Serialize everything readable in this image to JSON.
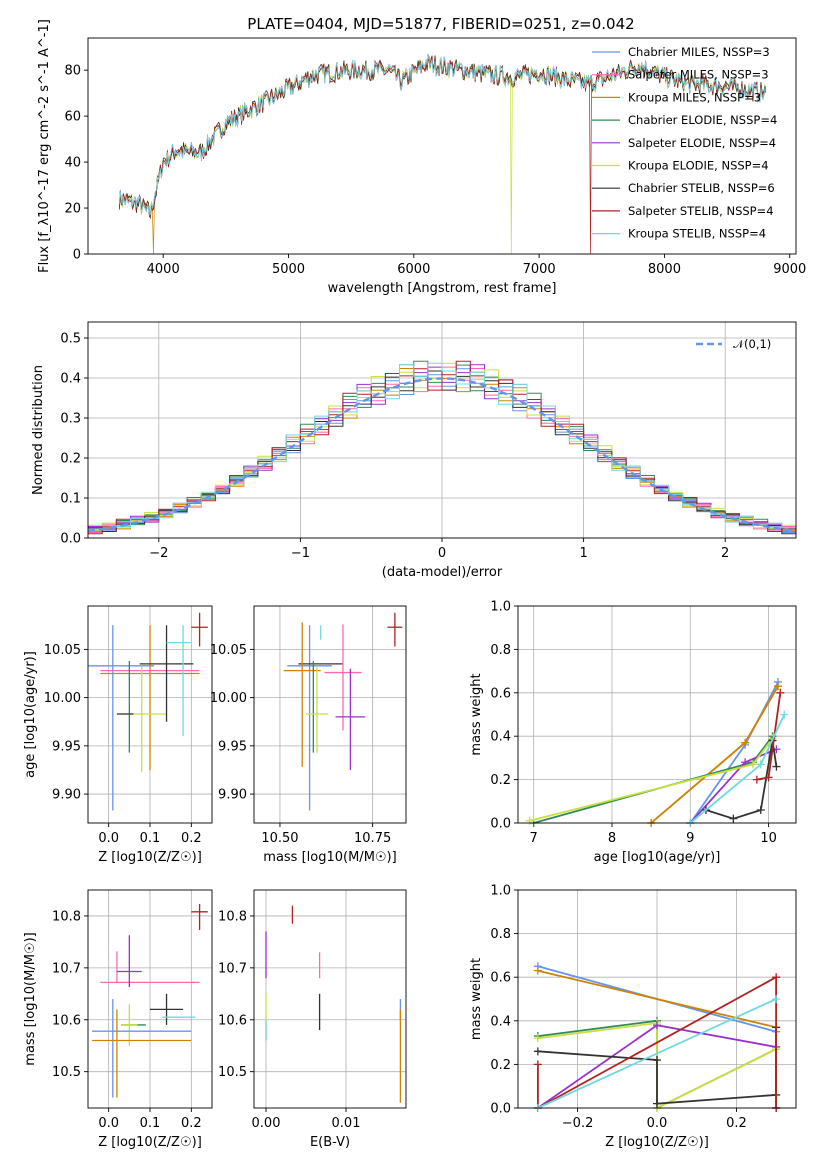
{
  "figure": {
    "title": "PLATE=0404, MJD=51877, FIBERID=0251, z=0.042"
  },
  "chart_data": [
    {
      "id": "spectrum",
      "type": "line",
      "xlabel": "wavelength [Angstrom, rest frame]",
      "ylabel": "Flux [f_λ10^-17 erg cm^-2 s^-1 A^-1]",
      "xlim": [
        3400,
        9050
      ],
      "ylim": [
        0,
        94
      ],
      "xticks": [
        4000,
        5000,
        6000,
        7000,
        8000,
        9000
      ],
      "yticks": [
        0,
        20,
        40,
        60,
        80
      ],
      "grid": false,
      "legend_position": "top-right",
      "spectrum_anchor": {
        "x": [
          3650,
          3800,
          3900,
          4000,
          4100,
          4300,
          4500,
          4700,
          5000,
          5200,
          5500,
          5800,
          5900,
          6100,
          6300,
          6600,
          6800,
          7000,
          7200,
          7400,
          7600,
          7800,
          8000,
          8200,
          8500,
          8800
        ],
        "y": [
          24,
          22,
          18,
          40,
          45,
          44,
          57,
          63,
          72,
          78,
          80,
          80,
          75,
          83,
          81,
          78,
          77,
          79,
          76,
          74,
          78,
          82,
          77,
          74,
          73,
          70
        ]
      },
      "series": [
        {
          "name": "Chabrier MILES, N_SSP=3",
          "color": "#6495ed",
          "dropout": null
        },
        {
          "name": "Salpeter MILES, N_SSP=3",
          "color": "#ff69b4",
          "dropout": null
        },
        {
          "name": "Kroupa MILES, N_SSP=3",
          "color": "#cd8500",
          "dropout": 3920
        },
        {
          "name": "Chabrier ELODIE, N_SSP=4",
          "color": "#2e8b57",
          "dropout": null
        },
        {
          "name": "Salpeter ELODIE, N_SSP=4",
          "color": "#9932cc",
          "dropout": null
        },
        {
          "name": "Kroupa ELODIE, N_SSP=4",
          "color": "#c8e040",
          "dropout": 6780
        },
        {
          "name": "Chabrier STELIB, N_SSP=6",
          "color": "#333333",
          "dropout": null
        },
        {
          "name": "Salpeter STELIB, N_SSP=4",
          "color": "#b22222",
          "dropout": 7410
        },
        {
          "name": "Kroupa STELIB, N_SSP=4",
          "color": "#70d8e0",
          "dropout": null
        }
      ]
    },
    {
      "id": "residuals",
      "type": "line",
      "xlabel": "(data-model)/error",
      "ylabel": "Normed distribution",
      "xlim": [
        -2.5,
        2.5
      ],
      "ylim": [
        0,
        0.54
      ],
      "xticks": [
        -2,
        -1,
        0,
        1,
        2
      ],
      "yticks": [
        0.0,
        0.1,
        0.2,
        0.3,
        0.4,
        0.5
      ],
      "grid": true,
      "legend_position": "top-right",
      "gaussian": {
        "name": "𝒩(0,1)",
        "color": "#6495ed",
        "mu": 0,
        "sigma": 1
      },
      "bin_width": 0.1,
      "histograms": [
        {
          "color": "#6495ed",
          "offsets": [
            0.01,
            -0.02,
            0.03,
            0.0,
            -0.01,
            0.02,
            -0.03,
            0.01
          ]
        },
        {
          "color": "#ff69b4",
          "offsets": [
            -0.02,
            0.03,
            0.0,
            0.04,
            -0.02,
            0.01,
            0.05,
            -0.03
          ]
        },
        {
          "color": "#cd8500",
          "offsets": [
            0.02,
            0.0,
            -0.03,
            0.03,
            0.01,
            -0.02,
            0.04,
            0.0
          ]
        },
        {
          "color": "#2e8b57",
          "offsets": [
            -0.01,
            0.02,
            0.04,
            -0.02,
            0.03,
            0.0,
            -0.01,
            0.05
          ]
        },
        {
          "color": "#9932cc",
          "offsets": [
            0.03,
            -0.01,
            0.02,
            0.05,
            -0.03,
            0.04,
            0.0,
            0.02
          ]
        },
        {
          "color": "#c8e040",
          "offsets": [
            0.0,
            0.04,
            -0.02,
            0.01,
            0.05,
            -0.01,
            0.03,
            -0.02
          ]
        },
        {
          "color": "#333333",
          "offsets": [
            0.02,
            -0.03,
            0.01,
            -0.01,
            0.02,
            0.03,
            -0.02,
            0.01
          ]
        },
        {
          "color": "#b22222",
          "offsets": [
            -0.03,
            0.01,
            0.05,
            0.02,
            -0.01,
            0.04,
            0.02,
            0.03
          ]
        },
        {
          "color": "#70d8e0",
          "offsets": [
            0.04,
            0.02,
            -0.01,
            0.03,
            0.0,
            -0.03,
            0.05,
            0.01
          ]
        }
      ]
    },
    {
      "id": "age-vs-z",
      "type": "scatter",
      "xlabel": "Z [log10(Z/Z☉)]",
      "ylabel": "age  [log10(age/yr)]",
      "xlim": [
        -0.05,
        0.25
      ],
      "ylim": [
        9.87,
        10.095
      ],
      "xticks": [
        0.0,
        0.1,
        0.2
      ],
      "yticks": [
        9.9,
        9.95,
        10.0,
        10.05
      ],
      "grid": true,
      "points": [
        {
          "color": "#6495ed",
          "x": 0.01,
          "xerr": 0.1,
          "y": 10.033,
          "yerr": [
            0.15,
            0.042
          ]
        },
        {
          "color": "#ff69b4",
          "x": 0.1,
          "xerr": 0.12,
          "y": 10.028,
          "yerr": [
            0.0,
            0.0
          ]
        },
        {
          "color": "#cd8500",
          "x": 0.1,
          "xerr": 0.12,
          "y": 10.025,
          "yerr": [
            0.1,
            0.05
          ]
        },
        {
          "color": "#2e8b57",
          "x": 0.05,
          "xerr": 0.0,
          "y": 9.983,
          "yerr": [
            0.04,
            0.055
          ]
        },
        {
          "color": "#9932cc",
          "x": 0.05,
          "xerr": 0.0,
          "y": 9.98,
          "yerr": [
            0.0,
            0.0
          ]
        },
        {
          "color": "#c8e040",
          "x": 0.08,
          "xerr": 0.06,
          "y": 9.983,
          "yerr": [
            0.06,
            0.05
          ]
        },
        {
          "color": "#333333",
          "x": 0.04,
          "xerr": 0.02,
          "y": 9.983,
          "yerr": [
            0.0,
            0.0
          ]
        },
        {
          "color": "#333333",
          "x": 0.14,
          "xerr": 0.065,
          "y": 10.035,
          "yerr": [
            0.06,
            0.04
          ]
        },
        {
          "color": "#b22222",
          "x": 0.22,
          "xerr": 0.02,
          "y": 10.073,
          "yerr": [
            0.02,
            0.015
          ]
        },
        {
          "color": "#70d8e0",
          "x": 0.18,
          "xerr": 0.0,
          "y": 10.06,
          "yerr": [
            0.1,
            0.015
          ]
        },
        {
          "color": "#70d8e0",
          "x": 0.17,
          "xerr": 0.03,
          "y": 10.057,
          "yerr": [
            0.0,
            0.0
          ]
        }
      ]
    },
    {
      "id": "age-vs-mass",
      "type": "scatter",
      "xlabel": "mass [log10(M/M☉)]",
      "ylabel": "",
      "xlim": [
        10.43,
        10.84
      ],
      "ylim": [
        9.87,
        10.095
      ],
      "xticks": [
        10.5,
        10.75
      ],
      "xticklabels": [
        "10.50",
        "10.75"
      ],
      "yticks": [
        9.9,
        9.95,
        10.0,
        10.05
      ],
      "grid": true,
      "points": [
        {
          "color": "#6495ed",
          "x": 10.58,
          "xerr": 0.06,
          "y": 10.033,
          "yerr": [
            0.15,
            0.042
          ]
        },
        {
          "color": "#333333",
          "x": 10.61,
          "xerr": 0.06,
          "y": 10.035,
          "yerr": [
            0.0,
            0.0
          ]
        },
        {
          "color": "#cd8500",
          "x": 10.56,
          "xerr": 0.05,
          "y": 10.028,
          "yerr": [
            0.1,
            0.05
          ]
        },
        {
          "color": "#ff69b4",
          "x": 10.67,
          "xerr": 0.05,
          "y": 10.026,
          "yerr": [
            0.06,
            0.05
          ]
        },
        {
          "color": "#2e8b57",
          "x": 10.59,
          "xerr": 0.0,
          "y": 9.983,
          "yerr": [
            0.04,
            0.055
          ]
        },
        {
          "color": "#c8e040",
          "x": 10.6,
          "xerr": 0.03,
          "y": 9.983,
          "yerr": [
            0.04,
            0.05
          ]
        },
        {
          "color": "#9932cc",
          "x": 10.69,
          "xerr": 0.04,
          "y": 9.98,
          "yerr": [
            0.055,
            0.05
          ]
        },
        {
          "color": "#70d8e0",
          "x": 10.61,
          "xerr": 0.0,
          "y": 10.06,
          "yerr": [
            0.0,
            0.015
          ]
        },
        {
          "color": "#b22222",
          "x": 10.81,
          "xerr": 0.02,
          "y": 10.073,
          "yerr": [
            0.02,
            0.015
          ]
        }
      ]
    },
    {
      "id": "massweight-vs-age",
      "type": "line",
      "xlabel": "age  [log10(age/yr)]",
      "ylabel": "mass weight",
      "xlim": [
        6.8,
        10.35
      ],
      "ylim": [
        0,
        1.0
      ],
      "xticks": [
        7,
        8,
        9,
        10
      ],
      "yticks": [
        0.0,
        0.2,
        0.4,
        0.6,
        0.8,
        1.0
      ],
      "grid": true,
      "series": [
        {
          "color": "#6495ed",
          "x": [
            9.0,
            9.7,
            10.12
          ],
          "y": [
            0.0,
            0.36,
            0.65
          ]
        },
        {
          "color": "#ff69b4",
          "x": [
            8.5,
            9.7,
            10.12
          ],
          "y": [
            0.0,
            0.37,
            0.63
          ]
        },
        {
          "color": "#cd8500",
          "x": [
            8.5,
            9.7,
            10.12
          ],
          "y": [
            0.0,
            0.37,
            0.63
          ]
        },
        {
          "color": "#2e8b57",
          "x": [
            7.0,
            9.8,
            10.05
          ],
          "y": [
            0.0,
            0.28,
            0.4
          ]
        },
        {
          "color": "#9932cc",
          "x": [
            9.0,
            9.7,
            10.1
          ],
          "y": [
            0.0,
            0.28,
            0.34
          ]
        },
        {
          "color": "#c8e040",
          "x": [
            6.95,
            9.8,
            10.05
          ],
          "y": [
            0.01,
            0.27,
            0.39
          ]
        },
        {
          "color": "#333333",
          "x": [
            9.2,
            9.55,
            9.9,
            10.05,
            10.1
          ],
          "y": [
            0.06,
            0.02,
            0.06,
            0.38,
            0.26
          ]
        },
        {
          "color": "#b22222",
          "x": [
            9.85,
            10.0,
            10.15
          ],
          "y": [
            0.2,
            0.21,
            0.6
          ]
        },
        {
          "color": "#70d8e0",
          "x": [
            9.0,
            9.9,
            10.2
          ],
          "y": [
            0.0,
            0.27,
            0.5
          ]
        }
      ]
    },
    {
      "id": "mass-vs-z",
      "type": "scatter",
      "xlabel": "Z [log10(Z/Z☉)]",
      "ylabel": "mass [log10(M/M☉)]",
      "xlim": [
        -0.05,
        0.25
      ],
      "ylim": [
        10.43,
        10.85
      ],
      "xticks": [
        0.0,
        0.1,
        0.2
      ],
      "yticks": [
        10.5,
        10.6,
        10.7,
        10.8
      ],
      "grid": true,
      "points": [
        {
          "color": "#ff69b4",
          "x": 0.1,
          "xerr": 0.12,
          "y": 10.672,
          "yerr": [
            0.0,
            0.0
          ]
        },
        {
          "color": "#ff69b4",
          "x": 0.02,
          "xerr": 0.0,
          "y": 10.672,
          "yerr": [
            0.0,
            0.06
          ]
        },
        {
          "color": "#9932cc",
          "x": 0.05,
          "xerr": 0.03,
          "y": 10.693,
          "yerr": [
            0.03,
            0.07
          ]
        },
        {
          "color": "#333333",
          "x": 0.14,
          "xerr": 0.04,
          "y": 10.62,
          "yerr": [
            0.03,
            0.03
          ]
        },
        {
          "color": "#70d8e0",
          "x": 0.17,
          "xerr": 0.04,
          "y": 10.605,
          "yerr": [
            0.0,
            0.0
          ]
        },
        {
          "color": "#2e8b57",
          "x": 0.06,
          "xerr": 0.03,
          "y": 10.59,
          "yerr": [
            0.0,
            0.0
          ]
        },
        {
          "color": "#c8e040",
          "x": 0.05,
          "xerr": 0.02,
          "y": 10.59,
          "yerr": [
            0.04,
            0.04
          ]
        },
        {
          "color": "#6495ed",
          "x": 0.08,
          "xerr": 0.12,
          "y": 10.578,
          "yerr": [
            0.0,
            0.0
          ]
        },
        {
          "color": "#6495ed",
          "x": 0.01,
          "xerr": 0.0,
          "y": 10.58,
          "yerr": [
            0.13,
            0.06
          ]
        },
        {
          "color": "#cd8500",
          "x": 0.08,
          "xerr": 0.12,
          "y": 10.56,
          "yerr": [
            0.0,
            0.0
          ]
        },
        {
          "color": "#cd8500",
          "x": 0.02,
          "xerr": 0.0,
          "y": 10.56,
          "yerr": [
            0.11,
            0.06
          ]
        },
        {
          "color": "#b22222",
          "x": 0.22,
          "xerr": 0.02,
          "y": 10.808,
          "yerr": [
            0.035,
            0.015
          ]
        }
      ]
    },
    {
      "id": "mass-vs-ebv",
      "type": "scatter",
      "xlabel": "E(B-V)",
      "ylabel": "",
      "xlim": [
        -0.0015,
        0.0175
      ],
      "ylim": [
        10.43,
        10.85
      ],
      "xticks": [
        0.0,
        0.01
      ],
      "xticklabels": [
        "0.00",
        "0.01"
      ],
      "yticks": [
        10.5,
        10.6,
        10.7,
        10.8
      ],
      "grid": true,
      "points": [
        {
          "color": "#9932cc",
          "x": 0.0,
          "xerr": 0.0,
          "y": 10.72,
          "yerr": [
            0.04,
            0.05
          ]
        },
        {
          "color": "#c8e040",
          "x": 0.0,
          "xerr": 0.0,
          "y": 10.61,
          "yerr": [
            0.05,
            0.04
          ]
        },
        {
          "color": "#70d8e0",
          "x": 0.0,
          "xerr": 0.0,
          "y": 10.6,
          "yerr": [
            0.04,
            0.0
          ]
        },
        {
          "color": "#b22222",
          "x": 0.0033,
          "xerr": 0.0,
          "y": 10.8,
          "yerr": [
            0.015,
            0.02
          ]
        },
        {
          "color": "#ff69b4",
          "x": 0.0067,
          "xerr": 0.0,
          "y": 10.68,
          "yerr": [
            0.0,
            0.05
          ]
        },
        {
          "color": "#333333",
          "x": 0.0067,
          "xerr": 0.0,
          "y": 10.61,
          "yerr": [
            0.03,
            0.04
          ]
        },
        {
          "color": "#6495ed",
          "x": 0.0168,
          "xerr": 0.0,
          "y": 10.6,
          "yerr": [
            0.0,
            0.04
          ]
        },
        {
          "color": "#cd8500",
          "x": 0.0168,
          "xerr": 0.0,
          "y": 10.53,
          "yerr": [
            0.09,
            0.09
          ]
        }
      ]
    },
    {
      "id": "massweight-vs-z",
      "type": "line",
      "xlabel": "Z [log10(Z/Z☉)]",
      "ylabel": "mass weight",
      "xlim": [
        -0.35,
        0.35
      ],
      "ylim": [
        0,
        1.0
      ],
      "xticks": [
        -0.2,
        0.0,
        0.2
      ],
      "xticklabels": [
        "−0.2",
        "0.0",
        "0.2"
      ],
      "yticks": [
        0.0,
        0.2,
        0.4,
        0.6,
        0.8,
        1.0
      ],
      "grid": true,
      "series": [
        {
          "color": "#6495ed",
          "x": [
            -0.3,
            0.3,
            0.3
          ],
          "y": [
            0.65,
            0.35,
            0.0
          ]
        },
        {
          "color": "#cd8500",
          "x": [
            -0.3,
            0.3,
            0.3
          ],
          "y": [
            0.63,
            0.37,
            0.0
          ]
        },
        {
          "color": "#2e8b57",
          "x": [
            -0.3,
            0.0,
            0.0,
            0.3
          ],
          "y": [
            0.33,
            0.4,
            0.0,
            0.27
          ]
        },
        {
          "color": "#c8e040",
          "x": [
            -0.3,
            0.0,
            0.0,
            0.3
          ],
          "y": [
            0.32,
            0.39,
            0.0,
            0.27
          ]
        },
        {
          "color": "#9932cc",
          "x": [
            -0.3,
            0.0,
            0.3,
            0.3
          ],
          "y": [
            0.0,
            0.38,
            0.28,
            0.0
          ]
        },
        {
          "color": "#333333",
          "x": [
            -0.3,
            0.0,
            0.0,
            0.3,
            0.3
          ],
          "y": [
            0.26,
            0.22,
            0.02,
            0.06,
            0.37
          ]
        },
        {
          "color": "#b22222",
          "x": [
            -0.3,
            -0.3,
            -0.3,
            0.3,
            0.3
          ],
          "y": [
            0.0,
            0.2,
            0.0,
            0.6,
            0.0
          ]
        },
        {
          "color": "#70d8e0",
          "x": [
            -0.3,
            0.3
          ],
          "y": [
            0.0,
            0.5
          ]
        }
      ]
    }
  ]
}
